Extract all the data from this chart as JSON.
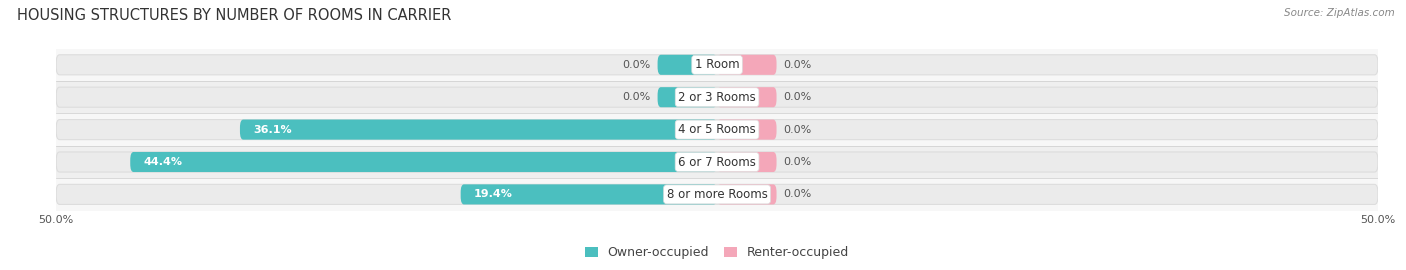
{
  "title": "HOUSING STRUCTURES BY NUMBER OF ROOMS IN CARRIER",
  "source": "Source: ZipAtlas.com",
  "categories": [
    "1 Room",
    "2 or 3 Rooms",
    "4 or 5 Rooms",
    "6 or 7 Rooms",
    "8 or more Rooms"
  ],
  "owner_values": [
    0.0,
    0.0,
    36.1,
    44.4,
    19.4
  ],
  "renter_values": [
    0.0,
    0.0,
    0.0,
    0.0,
    0.0
  ],
  "owner_color": "#4BBFBF",
  "renter_color": "#F4A7B9",
  "bar_bg_color": "#EBEBEB",
  "bar_bg_stroke": "#DDDDDD",
  "axis_limit": 50.0,
  "min_bar_width": 4.5,
  "bar_height": 0.62,
  "background_color": "#FFFFFF",
  "row_bg_even": "#F7F7F7",
  "row_bg_odd": "#EFEFEF",
  "title_fontsize": 10.5,
  "label_fontsize": 8.0,
  "category_fontsize": 8.5,
  "legend_fontsize": 9,
  "source_fontsize": 7.5,
  "owner_label_color": "#FFFFFF",
  "renter_label_color": "#555555",
  "zero_label_color": "#555555"
}
